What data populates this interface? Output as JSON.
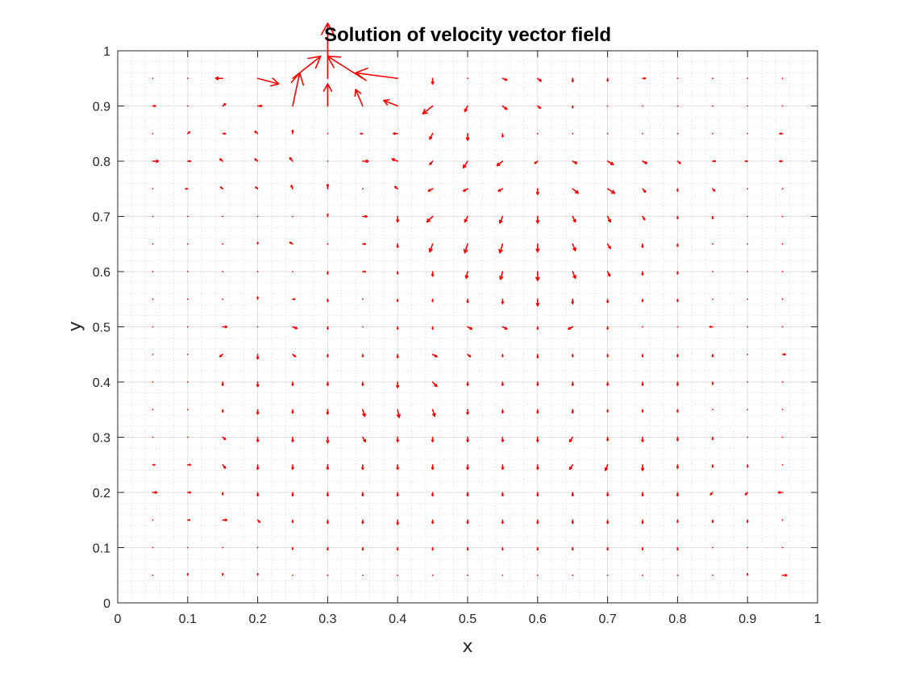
{
  "chart_data": {
    "type": "quiver",
    "title": "Solution of velocity vector field",
    "xlabel": "x",
    "ylabel": "y",
    "xlim": [
      0,
      1
    ],
    "ylim": [
      0,
      1
    ],
    "xticks": [
      0,
      0.1,
      0.2,
      0.3,
      0.4,
      0.5,
      0.6,
      0.7,
      0.8,
      0.9,
      1
    ],
    "yticks": [
      0,
      0.1,
      0.2,
      0.3,
      0.4,
      0.5,
      0.6,
      0.7,
      0.8,
      0.9,
      1
    ],
    "xtick_labels": [
      "0",
      "0.1",
      "0.2",
      "0.3",
      "0.4",
      "0.5",
      "0.6",
      "0.7",
      "0.8",
      "0.9",
      "1"
    ],
    "ytick_labels": [
      "0",
      "0.1",
      "0.2",
      "0.3",
      "0.4",
      "0.5",
      "0.6",
      "0.7",
      "0.8",
      "0.9",
      "1"
    ],
    "grid": true,
    "minor_grid": true,
    "arrow_color": "#ff0000",
    "grid_x": [
      0.05,
      0.1,
      0.15,
      0.2,
      0.25,
      0.3,
      0.35,
      0.4,
      0.45,
      0.5,
      0.55,
      0.6,
      0.65,
      0.7,
      0.75,
      0.8,
      0.85,
      0.9,
      0.95
    ],
    "grid_y": [
      0.95,
      0.9,
      0.85,
      0.8,
      0.75,
      0.7,
      0.65,
      0.6,
      0.55,
      0.5,
      0.45,
      0.4,
      0.35,
      0.3,
      0.25,
      0.2,
      0.15,
      0.1,
      0.05
    ],
    "u": [
      [
        0.0,
        0.0,
        -0.01,
        0.03,
        0.04,
        0.0,
        -0.05,
        -0.06,
        0.0,
        0.0,
        0.006,
        0.005,
        0.0,
        0.0,
        0.004,
        0.0,
        0.0,
        0.0,
        0.0
      ],
      [
        0.004,
        0.0,
        0.004,
        0.006,
        0.01,
        0.0,
        -0.01,
        -0.02,
        -0.014,
        -0.004,
        0.006,
        0.004,
        0.0,
        0.0,
        0.0,
        0.0,
        0.0,
        0.0,
        0.0
      ],
      [
        0.0,
        0.003,
        0.004,
        -0.004,
        0.0,
        0.0,
        -0.003,
        -0.006,
        -0.004,
        0.0,
        0.0,
        0.0,
        0.0,
        0.0,
        0.0,
        0.0,
        0.0,
        0.0,
        -0.004
      ],
      [
        0.008,
        0.004,
        -0.004,
        -0.004,
        -0.004,
        0.0,
        0.008,
        -0.008,
        -0.004,
        -0.006,
        -0.008,
        -0.004,
        0.006,
        0.008,
        0.006,
        0.004,
        0.004,
        -0.003,
        -0.004
      ],
      [
        0.0,
        -0.003,
        -0.003,
        -0.003,
        -0.002,
        0.0,
        0.0,
        -0.004,
        -0.006,
        -0.006,
        -0.006,
        0.0,
        0.008,
        0.01,
        0.004,
        0.0,
        0.003,
        0.0,
        0.0
      ],
      [
        0.0,
        0.0,
        0.0,
        0.0,
        0.0,
        0.0,
        0.006,
        0.0,
        -0.008,
        -0.004,
        -0.004,
        0.0,
        0.004,
        0.004,
        0.003,
        0.0,
        0.0,
        0.0,
        0.0
      ],
      [
        0.0,
        0.0,
        0.0,
        0.0,
        -0.004,
        0.0,
        0.004,
        0.0,
        -0.004,
        -0.004,
        -0.004,
        0.0,
        0.004,
        0.004,
        0.0,
        0.0,
        0.0,
        0.0,
        0.0
      ],
      [
        0.0,
        0.0,
        0.0,
        0.0,
        0.0,
        0.0,
        0.004,
        0.0,
        0.0,
        -0.002,
        -0.003,
        0.0,
        0.004,
        0.003,
        0.0,
        0.0,
        0.0,
        0.0,
        0.0
      ],
      [
        0.0,
        0.0,
        0.0,
        0.0,
        0.003,
        0.0,
        0.0,
        0.0,
        0.0,
        0.0,
        0.0,
        0.0,
        0.0,
        0.0,
        0.0,
        0.0,
        0.0,
        0.0,
        0.0
      ],
      [
        0.0,
        0.0,
        0.006,
        0.0,
        0.006,
        0.0,
        0.0,
        0.0,
        0.0,
        0.006,
        0.006,
        0.0,
        -0.006,
        0.0,
        0.0,
        0.0,
        -0.004,
        0.0,
        0.0
      ],
      [
        0.0,
        0.0,
        -0.004,
        0.0,
        0.004,
        0.0,
        0.0,
        0.0,
        0.006,
        0.004,
        0.0,
        0.0,
        0.0,
        0.0,
        0.0,
        0.0,
        0.0,
        0.0,
        0.004
      ],
      [
        0.0,
        0.0,
        0.0,
        0.0,
        0.0,
        0.0,
        0.0,
        0.0,
        0.006,
        0.0,
        0.0,
        0.0,
        0.0,
        0.0,
        0.0,
        0.0,
        0.0,
        0.0,
        0.0
      ],
      [
        0.0,
        0.0,
        0.0,
        0.0,
        0.0,
        0.0,
        0.003,
        0.002,
        0.003,
        0.0,
        0.0,
        0.0,
        0.0,
        0.0,
        0.0,
        0.0,
        0.0,
        0.0,
        0.0
      ],
      [
        0.0,
        0.0,
        0.004,
        0.0,
        0.0,
        0.0,
        0.004,
        0.0,
        0.0,
        0.0,
        0.0,
        0.0,
        -0.004,
        0.0,
        0.0,
        0.0,
        0.0,
        0.0,
        0.0
      ],
      [
        0.003,
        0.004,
        0.004,
        0.0,
        0.0,
        0.0,
        0.0,
        0.0,
        0.0,
        0.0,
        0.0,
        0.0,
        -0.004,
        -0.003,
        0.0,
        0.0,
        0.0,
        0.0,
        0.0
      ],
      [
        0.006,
        0.004,
        0.0,
        0.0,
        0.0,
        0.0,
        0.0,
        0.0,
        0.0,
        0.0,
        0.0,
        0.0,
        0.0,
        0.0,
        0.0,
        0.0,
        -0.003,
        -0.003,
        -0.006
      ],
      [
        0.0,
        0.003,
        0.006,
        0.003,
        0.0,
        0.0,
        0.0,
        0.0,
        0.0,
        0.0,
        0.0,
        0.0,
        0.0,
        0.0,
        0.0,
        0.0,
        0.0,
        0.0,
        0.0
      ],
      [
        0.0,
        0.0,
        0.0,
        0.0,
        0.0,
        0.0,
        0.0,
        0.0,
        0.0,
        0.0,
        0.0,
        0.0,
        0.0,
        0.0,
        0.0,
        0.0,
        0.0,
        0.0,
        0.0
      ],
      [
        0.0,
        0.0,
        0.0,
        0.0,
        0.0,
        0.0,
        0.0,
        0.0,
        0.0,
        0.0,
        0.0,
        0.0,
        0.0,
        0.0,
        0.0,
        0.0,
        0.0,
        0.0,
        0.006
      ]
    ],
    "v": [
      [
        0.0,
        0.0,
        0.0,
        -0.01,
        0.04,
        0.1,
        0.04,
        0.01,
        -0.01,
        0.0,
        -0.003,
        -0.005,
        -0.006,
        -0.005,
        0.0,
        0.0,
        0.0,
        0.0,
        0.0
      ],
      [
        0.0,
        0.0,
        0.004,
        0.0,
        0.06,
        0.04,
        0.03,
        0.01,
        -0.014,
        -0.01,
        -0.006,
        -0.004,
        -0.003,
        0.0,
        0.0,
        0.0,
        0.0,
        0.0,
        0.0
      ],
      [
        0.0,
        0.003,
        0.0,
        0.004,
        0.006,
        0.0,
        0.0,
        0.0,
        -0.01,
        -0.012,
        -0.006,
        0.0,
        0.0,
        0.0,
        0.0,
        0.0,
        0.0,
        0.0,
        0.0
      ],
      [
        0.0,
        0.0,
        0.004,
        0.004,
        0.006,
        0.0,
        0.0,
        0.004,
        -0.006,
        -0.012,
        -0.008,
        -0.004,
        -0.004,
        -0.006,
        -0.004,
        -0.004,
        0.0,
        0.0,
        0.0
      ],
      [
        0.0,
        0.0,
        0.003,
        0.003,
        0.006,
        0.008,
        0.0,
        0.004,
        -0.004,
        -0.004,
        -0.004,
        -0.01,
        -0.008,
        -0.008,
        -0.006,
        -0.004,
        -0.004,
        0.0,
        0.0
      ],
      [
        0.0,
        0.0,
        0.0,
        0.0,
        0.0,
        0.004,
        0.0,
        -0.01,
        -0.01,
        -0.01,
        -0.012,
        -0.012,
        -0.01,
        -0.01,
        -0.006,
        -0.004,
        -0.004,
        0.0,
        0.0
      ],
      [
        0.0,
        0.0,
        0.0,
        0.003,
        0.003,
        0.0,
        0.0,
        -0.006,
        -0.014,
        -0.016,
        -0.016,
        -0.014,
        -0.012,
        -0.008,
        -0.006,
        -0.004,
        0.0,
        0.0,
        0.0
      ],
      [
        0.0,
        0.0,
        0.0,
        0.0,
        0.0,
        -0.004,
        0.0,
        -0.004,
        -0.008,
        -0.012,
        -0.014,
        -0.016,
        -0.012,
        -0.008,
        -0.006,
        -0.004,
        0.0,
        0.0,
        0.0
      ],
      [
        0.0,
        0.0,
        0.0,
        0.004,
        0.0,
        -0.004,
        0.0,
        -0.004,
        -0.004,
        -0.006,
        -0.008,
        -0.012,
        -0.008,
        -0.006,
        -0.004,
        -0.004,
        -0.002,
        0.0,
        0.0
      ],
      [
        0.0,
        0.0,
        0.0,
        0.0,
        -0.003,
        -0.004,
        0.0,
        -0.004,
        -0.004,
        -0.004,
        -0.004,
        -0.004,
        -0.004,
        -0.004,
        0.0,
        0.0,
        0.0,
        0.0,
        0.0
      ],
      [
        0.0,
        0.0,
        -0.004,
        -0.008,
        -0.004,
        -0.004,
        -0.004,
        -0.006,
        -0.004,
        -0.004,
        -0.004,
        -0.006,
        -0.004,
        -0.004,
        -0.004,
        -0.004,
        -0.004,
        0.0,
        0.0
      ],
      [
        0.0,
        0.0,
        -0.006,
        -0.008,
        -0.006,
        -0.006,
        -0.006,
        -0.01,
        -0.008,
        -0.006,
        -0.006,
        -0.006,
        -0.006,
        -0.006,
        -0.006,
        -0.006,
        -0.004,
        0.0,
        0.0
      ],
      [
        0.0,
        0.0,
        -0.004,
        -0.008,
        -0.006,
        -0.008,
        -0.012,
        -0.014,
        -0.012,
        -0.008,
        -0.006,
        -0.006,
        -0.006,
        -0.004,
        -0.004,
        -0.004,
        0.0,
        0.0,
        0.0
      ],
      [
        0.0,
        0.0,
        -0.004,
        -0.008,
        -0.008,
        -0.01,
        -0.008,
        -0.008,
        -0.008,
        -0.008,
        -0.008,
        -0.008,
        -0.008,
        -0.006,
        -0.008,
        -0.006,
        -0.004,
        0.0,
        0.0
      ],
      [
        0.0,
        0.0,
        -0.006,
        -0.008,
        -0.008,
        -0.008,
        -0.008,
        -0.008,
        -0.008,
        -0.008,
        -0.008,
        -0.008,
        -0.008,
        -0.01,
        -0.01,
        -0.006,
        -0.004,
        -0.004,
        0.0
      ],
      [
        0.0,
        0.0,
        -0.004,
        -0.006,
        -0.006,
        -0.006,
        -0.006,
        -0.006,
        -0.006,
        -0.006,
        -0.006,
        -0.006,
        -0.006,
        -0.006,
        -0.006,
        -0.006,
        -0.004,
        -0.004,
        0.0
      ],
      [
        0.0,
        0.0,
        0.0,
        -0.004,
        -0.004,
        -0.006,
        -0.006,
        -0.008,
        -0.006,
        -0.006,
        -0.006,
        -0.006,
        -0.006,
        -0.006,
        -0.006,
        -0.004,
        -0.004,
        -0.004,
        0.0
      ],
      [
        0.0,
        0.0,
        0.0,
        0.0,
        -0.003,
        -0.004,
        -0.004,
        -0.004,
        -0.004,
        -0.004,
        -0.004,
        -0.004,
        -0.004,
        -0.004,
        -0.004,
        -0.004,
        0.0,
        0.0,
        0.0
      ],
      [
        0.0,
        0.003,
        0.003,
        0.003,
        0.0,
        0.0,
        0.0,
        0.0,
        0.0,
        0.0,
        0.0,
        0.0,
        0.0,
        0.0,
        0.0,
        0.0,
        0.0,
        0.003,
        0.0
      ]
    ]
  }
}
